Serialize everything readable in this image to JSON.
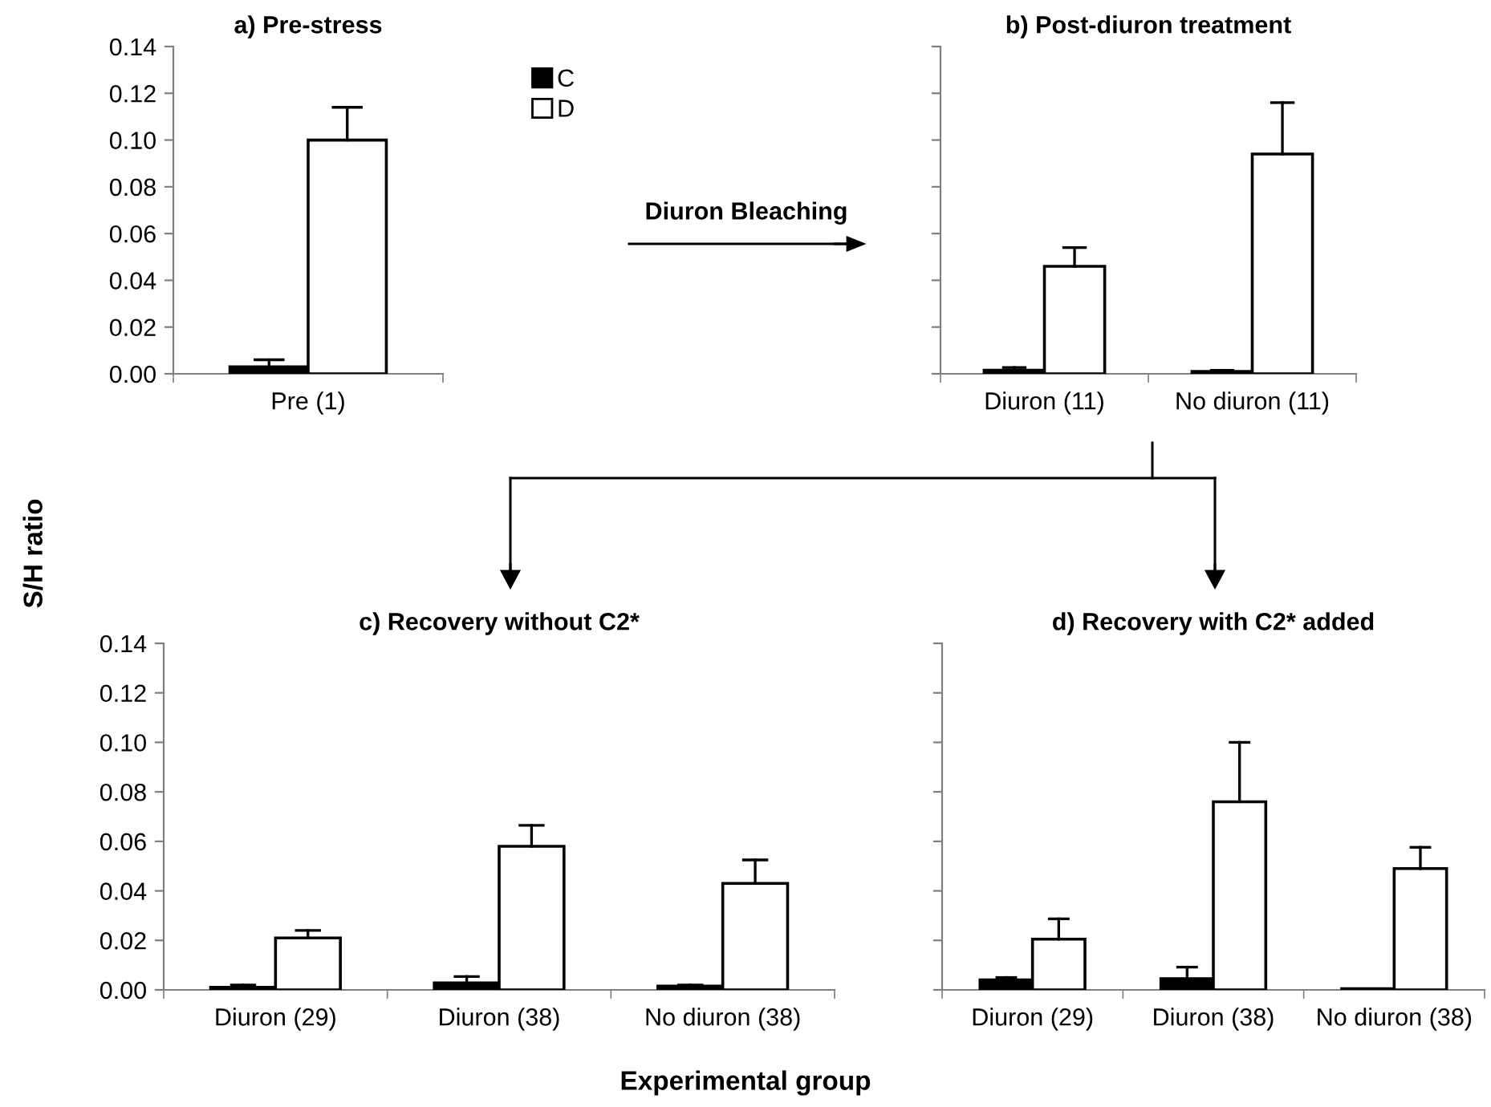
{
  "chart_data": [
    {
      "type": "bar",
      "title": "a) Pre-stress",
      "ylabel": "S/H ratio",
      "categories": [
        "Pre (1)"
      ],
      "ylim": [
        0,
        0.14
      ],
      "yticks": [
        {
          "value": 0,
          "label": "0.00"
        },
        {
          "value": 0.02,
          "label": "0.02"
        },
        {
          "value": 0.04,
          "label": "0.04"
        },
        {
          "value": 0.06,
          "label": "0.06"
        },
        {
          "value": 0.08,
          "label": "0.08"
        },
        {
          "value": 0.1,
          "label": "0.10"
        },
        {
          "value": 0.12,
          "label": "0.12"
        },
        {
          "value": 0.14,
          "label": "0.14"
        }
      ],
      "legend": "right",
      "grid": false,
      "annotations": [
        "Diuron Bleaching"
      ],
      "series": [
        {
          "name": "C",
          "color": "#000000",
          "values": [
            0.003
          ],
          "errors": [
            [
              0.003,
              0.006
            ]
          ]
        },
        {
          "name": "D",
          "color": "#ffffff",
          "values": [
            0.1
          ],
          "errors": [
            [
              0.1,
              0.114
            ]
          ]
        }
      ]
    },
    {
      "type": "bar",
      "title": "b) Post-diuron treatment",
      "categories": [
        "Diuron (11)",
        "No diuron (11)"
      ],
      "ylim": [
        0,
        0.14
      ],
      "yticks": [
        {
          "value": 0,
          "label": null
        },
        {
          "value": 0.02,
          "label": null
        },
        {
          "value": 0.04,
          "label": null
        },
        {
          "value": 0.06,
          "label": null
        },
        {
          "value": 0.08,
          "label": null
        },
        {
          "value": 0.1,
          "label": null
        },
        {
          "value": 0.12,
          "label": null
        },
        {
          "value": 0.14,
          "label": null
        }
      ],
      "tick_labels": "x",
      "grid": false,
      "series": [
        {
          "color": "#000000",
          "values": [
            0.0015,
            0.001
          ],
          "errors": [
            [
              0.0015,
              0.0027
            ],
            [
              0.001,
              0.0015
            ]
          ]
        },
        {
          "color": "#ffffff",
          "values": [
            0.046,
            0.094
          ],
          "errors": [
            [
              0.046,
              0.054
            ],
            [
              0.094,
              0.116
            ]
          ]
        }
      ]
    },
    {
      "type": "bar",
      "title": "c) Recovery without C2*",
      "xlabel": "Experimental group",
      "categories": [
        "Diuron (29)",
        "Diuron (38)",
        "No diuron (38)"
      ],
      "ylim": [
        0,
        0.14
      ],
      "yticks": [
        {
          "value": 0,
          "label": "0.00"
        },
        {
          "value": 0.02,
          "label": "0.02"
        },
        {
          "value": 0.04,
          "label": "0.04"
        },
        {
          "value": 0.06,
          "label": "0.06"
        },
        {
          "value": 0.08,
          "label": "0.08"
        },
        {
          "value": 0.1,
          "label": "0.10"
        },
        {
          "value": 0.12,
          "label": "0.12"
        },
        {
          "value": 0.14,
          "label": "0.14"
        }
      ],
      "grid": false,
      "series": [
        {
          "color": "#000000",
          "values": [
            0.001,
            0.0028,
            0.0015
          ],
          "errors": [
            [
              0.001,
              0.002
            ],
            [
              0.0028,
              0.0054
            ],
            [
              0.0015,
              0.002
            ]
          ]
        },
        {
          "color": "#ffffff",
          "values": [
            0.021,
            0.058,
            0.043
          ],
          "errors": [
            [
              0.021,
              0.024
            ],
            [
              0.058,
              0.0665
            ],
            [
              0.043,
              0.0525
            ]
          ]
        }
      ]
    },
    {
      "type": "bar",
      "title": "d) Recovery with C2* added",
      "categories": [
        "Diuron (29)",
        "Diuron (38)",
        "No diuron (38)"
      ],
      "ylim": [
        0,
        0.14
      ],
      "yticks": [
        {
          "value": 0,
          "label": null
        },
        {
          "value": 0.02,
          "label": null
        },
        {
          "value": 0.04,
          "label": null
        },
        {
          "value": 0.06,
          "label": null
        },
        {
          "value": 0.08,
          "label": null
        },
        {
          "value": 0.1,
          "label": null
        },
        {
          "value": 0.12,
          "label": null
        },
        {
          "value": 0.14,
          "label": null
        }
      ],
      "tick_labels": "x",
      "grid": false,
      "series": [
        {
          "color": "#000000",
          "values": [
            0.004,
            0.0045,
            0.0005
          ],
          "errors": [
            [
              0.004,
              0.005
            ],
            [
              0.0045,
              0.0092
            ],
            null
          ]
        },
        {
          "color": "#ffffff",
          "values": [
            0.0205,
            0.076,
            0.049
          ],
          "errors": [
            [
              0.0205,
              0.0287
            ],
            [
              0.076,
              0.1
            ],
            [
              0.049,
              0.0576
            ]
          ]
        }
      ]
    }
  ]
}
